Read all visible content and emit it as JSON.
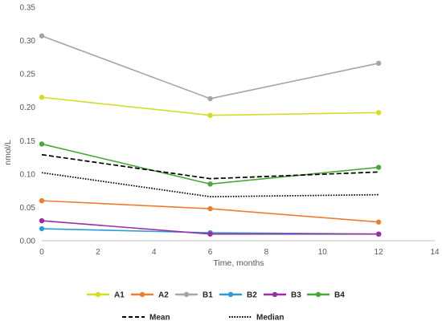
{
  "chart_data": {
    "type": "line",
    "title": "",
    "xlabel": "Time, months",
    "ylabel": "nmol/L",
    "xlim": [
      0,
      14
    ],
    "ylim": [
      0,
      0.35
    ],
    "x_ticks": [
      "0",
      "2",
      "4",
      "6",
      "8",
      "10",
      "12",
      "14"
    ],
    "y_ticks": [
      "0.00",
      "0.05",
      "0.10",
      "0.15",
      "0.20",
      "0.25",
      "0.30",
      "0.35"
    ],
    "grid": false,
    "legend_position": "bottom",
    "x": [
      0,
      6,
      12
    ],
    "series": [
      {
        "name": "A1",
        "color": "#d4dc24",
        "style": "solid",
        "markers": true,
        "values": [
          0.215,
          0.188,
          0.192
        ]
      },
      {
        "name": "A2",
        "color": "#ed7d31",
        "style": "solid",
        "markers": true,
        "values": [
          0.06,
          0.048,
          0.028
        ]
      },
      {
        "name": "B1",
        "color": "#a5a5a5",
        "style": "solid",
        "markers": true,
        "values": [
          0.307,
          0.213,
          0.266
        ]
      },
      {
        "name": "B2",
        "color": "#2e9bd6",
        "style": "solid",
        "markers": true,
        "values": [
          0.018,
          0.012,
          0.01
        ]
      },
      {
        "name": "B3",
        "color": "#9b2ea1",
        "style": "solid",
        "markers": true,
        "values": [
          0.03,
          0.01,
          0.01
        ]
      },
      {
        "name": "B4",
        "color": "#4aa838",
        "style": "solid",
        "markers": true,
        "values": [
          0.145,
          0.085,
          0.11
        ]
      },
      {
        "name": "Mean",
        "color": "#000000",
        "style": "dashed",
        "markers": false,
        "values": [
          0.129,
          0.093,
          0.103
        ]
      },
      {
        "name": "Median",
        "color": "#000000",
        "style": "dotted",
        "markers": false,
        "values": [
          0.102,
          0.066,
          0.069
        ]
      }
    ]
  }
}
